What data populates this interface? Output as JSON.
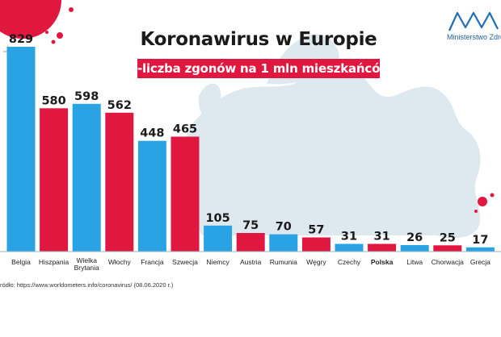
{
  "logo": {
    "name": "Ministerstwo Zdrowia",
    "color": "#1f6fb5"
  },
  "source": "ródło: https://www.worldometers.info/coronavirus/ (08.06.2020 r.)",
  "colors": {
    "blue": "#29a3e3",
    "red": "#e0173f",
    "map": "#dde8ef",
    "baseline": "#9fb6c6"
  },
  "chart_data": {
    "type": "bar",
    "title": "Koronawirus w Europie",
    "subtitle": "-liczba zgonów na 1 mln mieszkańców",
    "categories": [
      "Belgia",
      "Hiszpania",
      "Wielka Brytania",
      "Włochy",
      "Francja",
      "Szwecja",
      "Niemcy",
      "Austria",
      "Rumunia",
      "Węgry",
      "Czechy",
      "Polska",
      "Litwa",
      "Chorwacja",
      "Grecja"
    ],
    "category_lines": [
      [
        "Belgia"
      ],
      [
        "Hiszpania"
      ],
      [
        "Wielka",
        "Brytania"
      ],
      [
        "Włochy"
      ],
      [
        "Francja"
      ],
      [
        "Szwecja"
      ],
      [
        "Niemcy"
      ],
      [
        "Austria"
      ],
      [
        "Rumunia"
      ],
      [
        "Węgry"
      ],
      [
        "Czechy"
      ],
      [
        "Polska"
      ],
      [
        "Litwa"
      ],
      [
        "Chorwacja"
      ],
      [
        "Grecja"
      ]
    ],
    "values": [
      829,
      580,
      598,
      562,
      448,
      465,
      105,
      75,
      70,
      57,
      31,
      31,
      26,
      25,
      17
    ],
    "bar_colors": [
      "blue",
      "red",
      "blue",
      "red",
      "blue",
      "red",
      "blue",
      "red",
      "blue",
      "red",
      "blue",
      "red",
      "blue",
      "red",
      "blue"
    ],
    "highlight_category": "Polska",
    "ylim": [
      0,
      829
    ],
    "grid": false,
    "legend": "none"
  }
}
